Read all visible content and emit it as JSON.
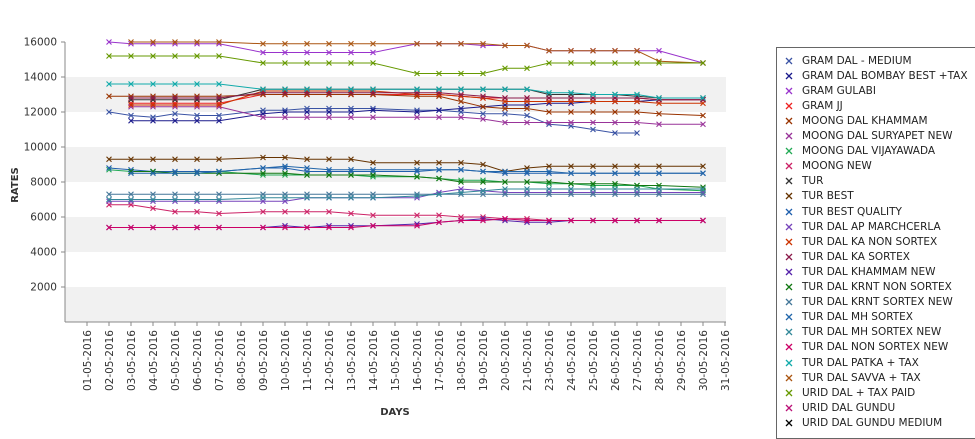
{
  "chart_data": {
    "type": "line",
    "xlabel": "DAYS",
    "ylabel": "RATES",
    "ylim": [
      0,
      16000
    ],
    "yticks": [
      2000,
      4000,
      6000,
      8000,
      10000,
      12000,
      14000,
      16000
    ],
    "categories": [
      "01-05-2016",
      "02-05-2016",
      "03-05-2016",
      "04-05-2016",
      "05-05-2016",
      "06-05-2016",
      "07-05-2016",
      "08-05-2016",
      "09-05-2016",
      "10-05-2016",
      "11-05-2016",
      "12-05-2016",
      "13-05-2016",
      "14-05-2016",
      "15-05-2016",
      "16-05-2016",
      "17-05-2016",
      "18-05-2016",
      "19-05-2016",
      "20-05-2016",
      "21-05-2016",
      "23-05-2016",
      "24-05-2016",
      "25-05-2016",
      "26-05-2016",
      "27-05-2016",
      "28-05-2016",
      "29-05-2016",
      "30-05-2016",
      "31-05-2016"
    ],
    "series": [
      {
        "name": "GRAM DAL - MEDIUM",
        "color": "#3a53a4",
        "values": [
          null,
          12000,
          11800,
          11700,
          11900,
          11800,
          11800,
          null,
          12100,
          12100,
          12200,
          12200,
          12200,
          12200,
          null,
          12100,
          12100,
          12000,
          11900,
          11900,
          11800,
          11300,
          11200,
          11000,
          10800,
          10800,
          null,
          null,
          null,
          null
        ]
      },
      {
        "name": "GRAM DAL BOMBAY BEST +TAX",
        "color": "#1a1a8c",
        "values": [
          null,
          null,
          11500,
          11500,
          11500,
          11500,
          11500,
          null,
          11900,
          12000,
          12000,
          12000,
          12000,
          12100,
          null,
          12000,
          12100,
          12200,
          12300,
          12400,
          12400,
          12500,
          12500,
          12600,
          12600,
          12600,
          12700,
          null,
          12700,
          null
        ]
      },
      {
        "name": "GRAM GULABI",
        "color": "#9933cc",
        "values": [
          null,
          16000,
          15900,
          15900,
          15900,
          15900,
          15900,
          null,
          15400,
          15400,
          15400,
          15400,
          15400,
          15400,
          null,
          15900,
          15900,
          15900,
          15800,
          15800,
          15800,
          15500,
          15500,
          15500,
          15500,
          15500,
          15500,
          null,
          14800,
          null
        ]
      },
      {
        "name": "GRAM JJ",
        "color": "#ee2222",
        "values": [
          null,
          null,
          12500,
          12500,
          12500,
          12500,
          12500,
          null,
          13000,
          13000,
          13000,
          13000,
          13000,
          13000,
          null,
          13000,
          13000,
          12900,
          12800,
          12800,
          12800,
          12800,
          12800,
          12800,
          12800,
          12800,
          12700,
          null,
          12700,
          null
        ]
      },
      {
        "name": "MOONG DAL KHAMMAM",
        "color": "#993300",
        "values": [
          null,
          12900,
          12900,
          12900,
          12900,
          12900,
          12900,
          null,
          13000,
          13000,
          13000,
          13000,
          13000,
          13000,
          null,
          12900,
          12900,
          12600,
          12300,
          12200,
          12200,
          12000,
          12000,
          12000,
          12000,
          12000,
          11900,
          null,
          11800,
          null
        ]
      },
      {
        "name": "MOONG DAL SURYAPET NEW",
        "color": "#993399",
        "values": [
          null,
          null,
          12300,
          12300,
          12300,
          12300,
          12300,
          null,
          11700,
          11700,
          11700,
          11700,
          11700,
          11700,
          null,
          11700,
          11700,
          11700,
          11600,
          11400,
          11400,
          11400,
          11400,
          11400,
          11400,
          11400,
          11300,
          null,
          11300,
          null
        ]
      },
      {
        "name": "MOONG DAL VIJAYAWADA",
        "color": "#22aa55",
        "values": [
          null,
          8700,
          8600,
          8600,
          8500,
          8500,
          8600,
          null,
          8400,
          8400,
          8400,
          8400,
          8400,
          8300,
          null,
          8300,
          8200,
          8100,
          8100,
          8000,
          8000,
          7900,
          7900,
          7800,
          7800,
          7800,
          7600,
          null,
          7500,
          null
        ]
      },
      {
        "name": "MOONG NEW",
        "color": "#cc2266",
        "values": [
          null,
          6700,
          6700,
          6500,
          6300,
          6300,
          6200,
          null,
          6300,
          6300,
          6300,
          6300,
          6200,
          6100,
          null,
          6100,
          6100,
          6000,
          6000,
          5900,
          5900,
          5800,
          5800,
          5800,
          5800,
          5800,
          5800,
          null,
          5800,
          null
        ]
      },
      {
        "name": "TUR",
        "color": "#333333",
        "values": [
          null,
          null,
          12700,
          12700,
          12700,
          12700,
          12700,
          null,
          13300,
          13300,
          13300,
          13300,
          13300,
          13300,
          null,
          13300,
          13300,
          13300,
          13300,
          13300,
          13300,
          13000,
          13000,
          13000,
          13000,
          12900,
          12800,
          null,
          12800,
          null
        ]
      },
      {
        "name": "TUR BEST",
        "color": "#663300",
        "values": [
          null,
          9300,
          9300,
          9300,
          9300,
          9300,
          9300,
          null,
          9400,
          9400,
          9300,
          9300,
          9300,
          9100,
          null,
          9100,
          9100,
          9100,
          9000,
          8600,
          8800,
          8900,
          8900,
          8900,
          8900,
          8900,
          8900,
          null,
          8900,
          null
        ]
      },
      {
        "name": "TUR BEST QUALITY",
        "color": "#1f5fad",
        "values": [
          null,
          8800,
          8700,
          8600,
          8600,
          8600,
          8600,
          null,
          8800,
          8800,
          8600,
          8600,
          8600,
          8600,
          null,
          8600,
          8700,
          8700,
          8600,
          8500,
          8500,
          8500,
          8500,
          8500,
          8500,
          8500,
          8500,
          null,
          8500,
          null
        ]
      },
      {
        "name": "TUR DAL AP MARCHCERLA",
        "color": "#7744bb",
        "values": [
          null,
          6900,
          6900,
          6900,
          6900,
          6900,
          6900,
          null,
          6900,
          6900,
          7100,
          7100,
          7100,
          7100,
          null,
          7100,
          7400,
          7600,
          7500,
          7400,
          7400,
          7400,
          7400,
          7400,
          7400,
          7400,
          7400,
          null,
          7400,
          null
        ]
      },
      {
        "name": "TUR DAL KA NON SORTEX",
        "color": "#cc3300",
        "values": [
          null,
          null,
          12400,
          12400,
          12400,
          12400,
          12400,
          null,
          13200,
          13200,
          13200,
          13200,
          13200,
          13200,
          null,
          13000,
          13000,
          12900,
          12800,
          12600,
          12600,
          12600,
          12600,
          12600,
          12600,
          12600,
          12500,
          null,
          12500,
          null
        ]
      },
      {
        "name": "TUR DAL KA SORTEX",
        "color": "#8b1a4a",
        "values": [
          null,
          null,
          12800,
          12800,
          12800,
          12800,
          12800,
          null,
          13100,
          13100,
          13100,
          13100,
          13100,
          13100,
          null,
          13100,
          13100,
          13000,
          12900,
          12800,
          12800,
          12800,
          12800,
          12800,
          12800,
          12800,
          12700,
          null,
          12700,
          null
        ]
      },
      {
        "name": "TUR DAL KHAMMAM NEW",
        "color": "#5522aa",
        "values": [
          null,
          5400,
          5400,
          5400,
          5400,
          5400,
          5400,
          null,
          5400,
          5500,
          5400,
          5500,
          5500,
          5500,
          null,
          5600,
          5700,
          5800,
          5900,
          5800,
          5700,
          5700,
          5800,
          5800,
          5800,
          5800,
          5800,
          null,
          5800,
          null
        ]
      },
      {
        "name": "TUR DAL KRNT NON SORTEX",
        "color": "#117711",
        "values": [
          null,
          null,
          8600,
          8600,
          8500,
          8500,
          8500,
          null,
          8500,
          8500,
          8400,
          8400,
          8400,
          8400,
          null,
          8300,
          8200,
          8000,
          8000,
          8000,
          8000,
          8000,
          7900,
          7900,
          7900,
          7800,
          7800,
          null,
          7700,
          null
        ]
      },
      {
        "name": "TUR DAL KRNT SORTEX NEW",
        "color": "#447799",
        "values": [
          null,
          7300,
          7300,
          7300,
          7300,
          7300,
          7300,
          null,
          7300,
          7300,
          7300,
          7300,
          7300,
          7300,
          null,
          7300,
          7300,
          7300,
          7300,
          7300,
          7300,
          7300,
          7300,
          7300,
          7300,
          7300,
          7300,
          null,
          7300,
          null
        ]
      },
      {
        "name": "TUR DAL MH SORTEX",
        "color": "#2266aa",
        "values": [
          null,
          null,
          8500,
          8500,
          8500,
          8500,
          8600,
          null,
          8800,
          8900,
          8800,
          8700,
          8700,
          8700,
          null,
          8700,
          8700,
          8700,
          8600,
          8600,
          8600,
          8600,
          8500,
          8500,
          8500,
          8500,
          8500,
          null,
          8500,
          null
        ]
      },
      {
        "name": "TUR DAL MH SORTEX NEW",
        "color": "#338899",
        "values": [
          null,
          7000,
          7000,
          7000,
          7000,
          7000,
          7000,
          null,
          7100,
          7100,
          7100,
          7100,
          7100,
          7100,
          null,
          7200,
          7300,
          7400,
          7500,
          7600,
          7600,
          7600,
          7600,
          7600,
          7600,
          7600,
          7600,
          null,
          7600,
          null
        ]
      },
      {
        "name": "TUR DAL NON SORTEX NEW",
        "color": "#cc0066",
        "values": [
          null,
          5400,
          5400,
          5400,
          5400,
          5400,
          5400,
          null,
          5400,
          5400,
          5400,
          5400,
          5400,
          5500,
          null,
          5500,
          5700,
          5800,
          5800,
          5900,
          5800,
          5800,
          5800,
          5800,
          5800,
          5800,
          5800,
          null,
          5800,
          null
        ]
      },
      {
        "name": "TUR DAL PATKA + TAX",
        "color": "#11aaaa",
        "values": [
          null,
          13600,
          13600,
          13600,
          13600,
          13600,
          13600,
          null,
          13300,
          13300,
          13300,
          13300,
          13300,
          13300,
          null,
          13300,
          13300,
          13300,
          13300,
          13300,
          13300,
          13100,
          13100,
          13000,
          13000,
          13000,
          12800,
          null,
          12800,
          null
        ]
      },
      {
        "name": "TUR DAL SAVVA + TAX",
        "color": "#aa5511",
        "values": [
          null,
          null,
          16000,
          16000,
          16000,
          16000,
          16000,
          null,
          15900,
          15900,
          15900,
          15900,
          15900,
          15900,
          null,
          15900,
          15900,
          15900,
          15900,
          15800,
          15800,
          15500,
          15500,
          15500,
          15500,
          15500,
          14900,
          null,
          14800,
          null
        ]
      },
      {
        "name": "URID DAL + TAX PAID",
        "color": "#669900",
        "values": [
          null,
          15200,
          15200,
          15200,
          15200,
          15200,
          15200,
          null,
          14800,
          14800,
          14800,
          14800,
          14800,
          14800,
          null,
          14200,
          14200,
          14200,
          14200,
          14500,
          14500,
          14800,
          14800,
          14800,
          14800,
          14800,
          14800,
          null,
          14800,
          null
        ]
      },
      {
        "name": "URID DAL GUNDU",
        "color": "#bb1177",
        "values": [
          null,
          null,
          null,
          null,
          null,
          null,
          null,
          null,
          null,
          null,
          null,
          null,
          null,
          null,
          null,
          null,
          null,
          null,
          null,
          null,
          null,
          null,
          null,
          null,
          null,
          null,
          null,
          null,
          null,
          null
        ]
      },
      {
        "name": "URID DAL GUNDU MEDIUM",
        "color": "#000000",
        "values": [
          null,
          null,
          null,
          null,
          null,
          null,
          null,
          null,
          null,
          null,
          null,
          null,
          null,
          null,
          null,
          null,
          null,
          null,
          null,
          null,
          null,
          null,
          null,
          null,
          null,
          null,
          null,
          null,
          null,
          null
        ]
      }
    ]
  }
}
